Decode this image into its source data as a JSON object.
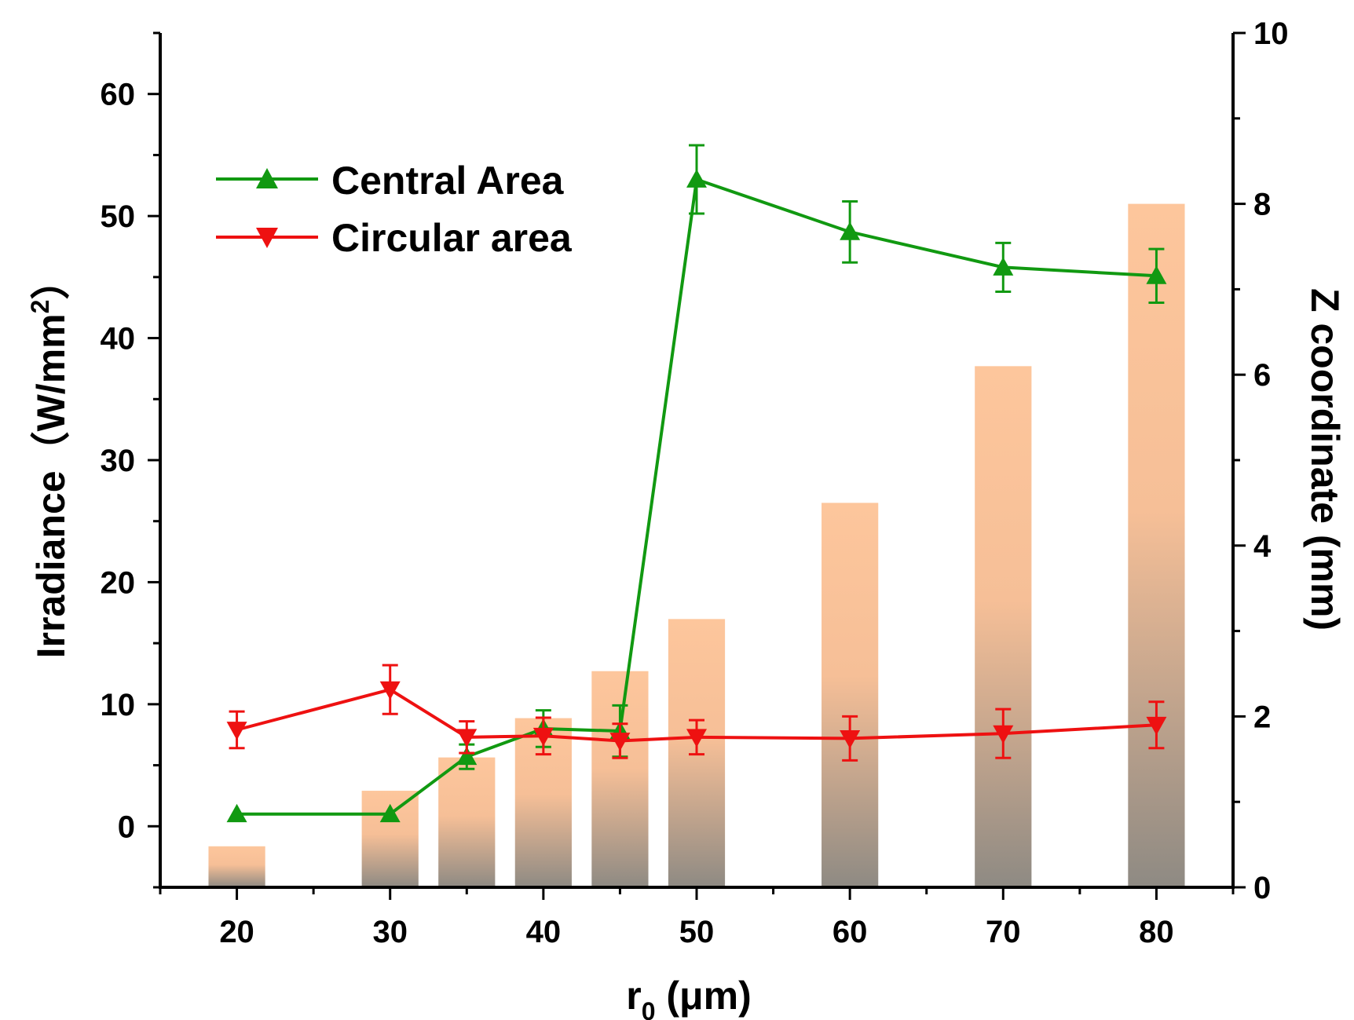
{
  "chart_data": {
    "type": "bar+line",
    "x_ticks": [
      20,
      30,
      40,
      50,
      60,
      70,
      80
    ],
    "xlim": [
      15,
      85
    ],
    "ylim_left": [
      -5,
      65
    ],
    "yticks_left": [
      0,
      10,
      20,
      30,
      40,
      50,
      60
    ],
    "ylim_right": [
      0,
      10
    ],
    "yticks_right": [
      0,
      2,
      4,
      6,
      8,
      10
    ],
    "xlabel": {
      "main": "r",
      "sub": "0",
      "rest": " (μm)"
    },
    "ylabel_left": {
      "main": "Irradiance（W/mm",
      "sup": "2",
      "end": "）"
    },
    "ylabel_right": "Z coordinate (mm)",
    "bars": {
      "axis": "right",
      "width": 3.7,
      "x": [
        20,
        30,
        35,
        40,
        45,
        50,
        60,
        70,
        80
      ],
      "values": [
        0.48,
        1.13,
        1.52,
        1.98,
        2.53,
        3.14,
        4.5,
        6.1,
        8.0
      ],
      "color_top": "#fdc69c",
      "color_bottom": "#8e8a83"
    },
    "series": [
      {
        "name": "Central Area",
        "axis": "left",
        "marker": "triangle-up",
        "color": "#119911",
        "x": [
          20,
          30,
          35,
          40,
          45,
          50,
          60,
          70,
          80
        ],
        "y": [
          1.0,
          1.0,
          5.7,
          8.0,
          7.8,
          53.0,
          48.7,
          45.8,
          45.1
        ],
        "err": [
          0.0,
          0.0,
          1.0,
          1.5,
          2.1,
          2.8,
          2.5,
          2.0,
          2.2
        ]
      },
      {
        "name": "Circular area",
        "axis": "left",
        "marker": "triangle-down",
        "color": "#ee1111",
        "x": [
          20,
          30,
          35,
          40,
          45,
          50,
          60,
          70,
          80
        ],
        "y": [
          7.9,
          11.2,
          7.3,
          7.4,
          7.0,
          7.3,
          7.2,
          7.6,
          8.3
        ],
        "err": [
          1.5,
          2.0,
          1.3,
          1.5,
          1.4,
          1.4,
          1.8,
          2.0,
          1.9
        ]
      }
    ],
    "legend": "top-left"
  }
}
